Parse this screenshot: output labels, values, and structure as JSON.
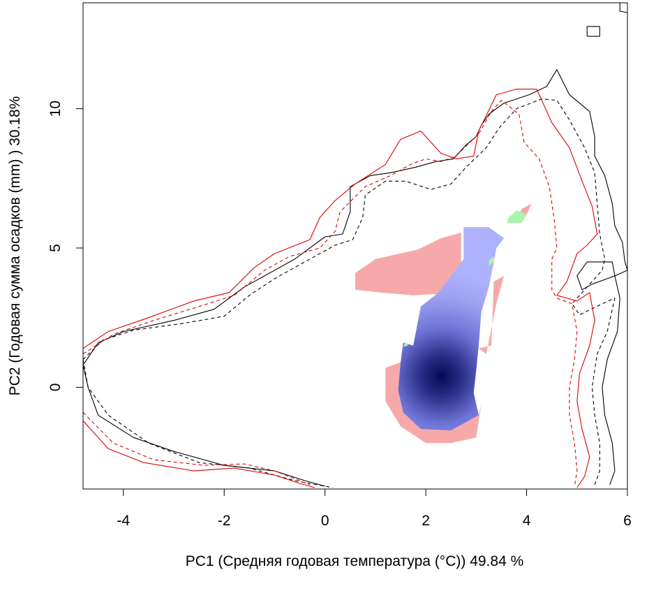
{
  "chart_data": {
    "type": "heatmap",
    "title": "",
    "xlabel": "PC1 (Средняя годовая температура (°C)) 49.84 %",
    "ylabel": "PC2 (Годовая сумма осадков  (mm) ) 30.18%",
    "xlim": [
      -4.8,
      6.0
    ],
    "ylim": [
      -3.65,
      13.8
    ],
    "x_ticks": [
      -4,
      -2,
      0,
      2,
      4,
      6
    ],
    "y_ticks": [
      0,
      5,
      10
    ],
    "x_tick_labels": [
      "-4",
      "-2",
      "0",
      "2",
      "4",
      "6"
    ],
    "y_tick_labels": [
      "0",
      "5",
      "10"
    ],
    "grid": false,
    "legend": "none",
    "colors": {
      "density_low": "#aeb1fb",
      "density_high": "#050a5a",
      "niche_only_a": "#f7a9a9",
      "niche_only_b": "#aaf5aa",
      "contour_a": "#000000",
      "contour_b": "#dd0000"
    },
    "density_peak": [
      2.3,
      0.4
    ],
    "regions": {
      "density": [
        [
          1.55,
          1.6
        ],
        [
          1.75,
          1.5
        ],
        [
          1.9,
          2.9
        ],
        [
          2.25,
          3.4
        ],
        [
          2.75,
          4.6
        ],
        [
          2.75,
          5.75
        ],
        [
          3.25,
          5.75
        ],
        [
          3.55,
          5.35
        ],
        [
          3.4,
          5.0
        ],
        [
          3.35,
          4.5
        ],
        [
          3.25,
          3.6
        ],
        [
          3.1,
          2.7
        ],
        [
          3.05,
          1.5
        ],
        [
          3.0,
          0.6
        ],
        [
          2.95,
          -0.2
        ],
        [
          3.05,
          -1.0
        ],
        [
          2.5,
          -1.55
        ],
        [
          1.9,
          -1.5
        ],
        [
          1.55,
          -0.9
        ],
        [
          1.45,
          -0.1
        ],
        [
          1.5,
          0.9
        ]
      ],
      "niche_a_only": [
        [
          [
            0.6,
            4.1
          ],
          [
            1.0,
            4.6
          ],
          [
            1.85,
            4.95
          ],
          [
            2.3,
            5.35
          ],
          [
            2.7,
            5.55
          ],
          [
            2.7,
            4.3
          ],
          [
            2.25,
            3.35
          ],
          [
            1.75,
            3.3
          ],
          [
            1.1,
            3.4
          ],
          [
            0.6,
            3.5
          ]
        ],
        [
          [
            1.2,
            0.7
          ],
          [
            1.5,
            0.9
          ],
          [
            1.45,
            -0.1
          ],
          [
            1.55,
            -0.9
          ],
          [
            1.9,
            -1.5
          ],
          [
            2.5,
            -1.55
          ],
          [
            3.05,
            -1.0
          ],
          [
            3.1,
            -0.6
          ],
          [
            3.0,
            -1.8
          ],
          [
            2.5,
            -2.0
          ],
          [
            2.0,
            -2.0
          ],
          [
            1.5,
            -1.4
          ],
          [
            1.2,
            -0.5
          ]
        ],
        [
          [
            3.05,
            1.4
          ],
          [
            3.3,
            1.5
          ],
          [
            3.35,
            3.8
          ],
          [
            3.55,
            4.0
          ],
          [
            3.4,
            3.0
          ],
          [
            3.2,
            1.2
          ]
        ],
        [
          [
            3.8,
            6.0
          ],
          [
            3.9,
            6.4
          ],
          [
            4.1,
            6.6
          ],
          [
            4.0,
            6.2
          ]
        ]
      ],
      "niche_b_only": [
        [
          [
            3.6,
            5.9
          ],
          [
            3.9,
            5.9
          ],
          [
            4.0,
            6.2
          ],
          [
            3.8,
            6.35
          ],
          [
            3.65,
            6.1
          ]
        ],
        [
          [
            3.25,
            4.35
          ],
          [
            3.35,
            4.5
          ],
          [
            3.35,
            4.7
          ],
          [
            3.25,
            4.55
          ]
        ],
        [
          [
            1.55,
            1.45
          ],
          [
            1.65,
            1.5
          ],
          [
            1.6,
            1.65
          ]
        ]
      ]
    },
    "contours": [
      {
        "color": "contour_a",
        "dash": "solid",
        "points": [
          [
            -4.8,
            0.8
          ],
          [
            -4.5,
            1.6
          ],
          [
            -4.0,
            2.0
          ],
          [
            -3.0,
            2.4
          ],
          [
            -2.2,
            2.8
          ],
          [
            -1.6,
            3.6
          ],
          [
            -1.2,
            4.0
          ],
          [
            -0.6,
            4.6
          ],
          [
            0.0,
            5.4
          ],
          [
            0.35,
            5.5
          ],
          [
            0.5,
            6.3
          ],
          [
            0.5,
            7.2
          ],
          [
            0.9,
            7.6
          ],
          [
            1.3,
            7.7
          ],
          [
            1.8,
            7.9
          ],
          [
            2.2,
            8.1
          ],
          [
            2.55,
            8.2
          ],
          [
            2.8,
            8.7
          ],
          [
            3.0,
            9.0
          ],
          [
            3.1,
            9.4
          ],
          [
            3.25,
            9.8
          ],
          [
            3.55,
            10.2
          ],
          [
            4.05,
            10.5
          ],
          [
            4.4,
            10.8
          ],
          [
            4.6,
            11.4
          ],
          [
            4.85,
            10.5
          ],
          [
            5.25,
            9.9
          ],
          [
            5.35,
            9.0
          ],
          [
            5.35,
            8.3
          ],
          [
            5.55,
            7.6
          ],
          [
            5.7,
            6.6
          ],
          [
            5.75,
            5.8
          ],
          [
            5.9,
            5.2
          ],
          [
            5.95,
            4.5
          ],
          [
            6.0,
            4.2
          ],
          [
            5.75,
            4.0
          ],
          [
            5.6,
            3.9
          ],
          [
            5.3,
            3.7
          ],
          [
            5.1,
            3.5
          ],
          [
            5.0,
            4.0
          ],
          [
            5.2,
            4.5
          ],
          [
            5.7,
            4.5
          ],
          [
            5.75,
            4.0
          ],
          [
            5.85,
            3.2
          ],
          [
            5.8,
            2.0
          ],
          [
            5.6,
            1.0
          ],
          [
            5.5,
            0.0
          ],
          [
            5.55,
            -1.0
          ],
          [
            5.7,
            -2.0
          ],
          [
            5.75,
            -3.0
          ],
          [
            5.65,
            -3.5
          ]
        ]
      },
      {
        "color": "contour_a",
        "dash": "solid",
        "points": [
          [
            -4.8,
            0.8
          ],
          [
            -4.7,
            0.0
          ],
          [
            -4.5,
            -1.0
          ],
          [
            -3.8,
            -1.8
          ],
          [
            -3.0,
            -2.3
          ],
          [
            -2.0,
            -2.8
          ],
          [
            -1.0,
            -3.0
          ],
          [
            -0.4,
            -3.35
          ],
          [
            0.0,
            -3.55
          ]
        ]
      },
      {
        "color": "contour_a",
        "dash": "dashed",
        "points": [
          [
            -4.8,
            1.0
          ],
          [
            -4.4,
            1.7
          ],
          [
            -3.8,
            2.05
          ],
          [
            -2.8,
            2.3
          ],
          [
            -2.0,
            2.55
          ],
          [
            -1.5,
            3.3
          ],
          [
            -1.0,
            3.9
          ],
          [
            -0.4,
            4.5
          ],
          [
            0.2,
            5.1
          ],
          [
            0.55,
            5.3
          ],
          [
            0.75,
            6.1
          ],
          [
            0.8,
            6.9
          ],
          [
            1.2,
            7.4
          ],
          [
            1.6,
            7.4
          ],
          [
            2.1,
            7.1
          ],
          [
            2.5,
            7.3
          ],
          [
            2.8,
            7.9
          ],
          [
            3.2,
            8.6
          ],
          [
            3.45,
            9.3
          ],
          [
            3.8,
            10.0
          ],
          [
            4.3,
            10.35
          ],
          [
            4.6,
            10.3
          ],
          [
            4.85,
            9.6
          ],
          [
            5.15,
            8.6
          ],
          [
            5.35,
            7.7
          ],
          [
            5.4,
            6.6
          ],
          [
            5.45,
            5.5
          ],
          [
            5.55,
            4.6
          ],
          [
            5.5,
            4.2
          ],
          [
            5.2,
            3.6
          ],
          [
            4.9,
            3.0
          ],
          [
            5.05,
            2.6
          ],
          [
            5.5,
            3.0
          ],
          [
            5.75,
            3.2
          ],
          [
            5.6,
            2.0
          ],
          [
            5.4,
            1.2
          ],
          [
            5.3,
            0.0
          ],
          [
            5.35,
            -1.0
          ],
          [
            5.45,
            -2.0
          ],
          [
            5.45,
            -3.0
          ],
          [
            5.35,
            -3.5
          ]
        ]
      },
      {
        "color": "contour_a",
        "dash": "dashed",
        "points": [
          [
            -4.8,
            1.0
          ],
          [
            -4.7,
            0.0
          ],
          [
            -4.3,
            -1.0
          ],
          [
            -3.5,
            -2.0
          ],
          [
            -2.5,
            -2.7
          ],
          [
            -1.5,
            -2.9
          ],
          [
            -0.6,
            -3.35
          ],
          [
            0.15,
            -3.6
          ]
        ]
      },
      {
        "color": "contour_b",
        "dash": "solid",
        "points": [
          [
            -4.8,
            1.4
          ],
          [
            -4.3,
            2.0
          ],
          [
            -3.5,
            2.5
          ],
          [
            -2.6,
            3.1
          ],
          [
            -1.9,
            3.4
          ],
          [
            -1.4,
            4.3
          ],
          [
            -1.0,
            4.8
          ],
          [
            -0.3,
            5.3
          ],
          [
            -0.1,
            6.1
          ],
          [
            0.2,
            6.7
          ],
          [
            0.6,
            7.3
          ],
          [
            1.2,
            8.0
          ],
          [
            1.5,
            8.9
          ],
          [
            1.9,
            9.2
          ],
          [
            2.3,
            8.4
          ],
          [
            2.6,
            8.2
          ],
          [
            2.95,
            8.3
          ],
          [
            3.05,
            9.2
          ],
          [
            3.4,
            10.5
          ],
          [
            3.8,
            10.7
          ],
          [
            4.2,
            10.7
          ],
          [
            4.5,
            9.5
          ],
          [
            4.85,
            8.6
          ],
          [
            5.1,
            7.4
          ],
          [
            5.3,
            6.5
          ],
          [
            5.4,
            5.5
          ],
          [
            5.2,
            5.1
          ],
          [
            5.0,
            4.8
          ],
          [
            4.8,
            3.8
          ],
          [
            4.6,
            3.3
          ],
          [
            5.0,
            3.1
          ],
          [
            5.25,
            3.4
          ],
          [
            5.35,
            2.4
          ],
          [
            5.25,
            1.5
          ],
          [
            5.05,
            0.5
          ],
          [
            5.0,
            -0.5
          ],
          [
            5.1,
            -1.5
          ],
          [
            5.25,
            -2.5
          ],
          [
            5.15,
            -3.2
          ],
          [
            5.0,
            -3.6
          ]
        ]
      },
      {
        "color": "contour_b",
        "dash": "solid",
        "points": [
          [
            -4.8,
            -1.2
          ],
          [
            -4.3,
            -2.2
          ],
          [
            -3.6,
            -2.7
          ],
          [
            -2.6,
            -3.0
          ],
          [
            -1.8,
            -2.9
          ],
          [
            -1.0,
            -3.15
          ],
          [
            -0.5,
            -3.45
          ],
          [
            -0.2,
            -3.6
          ]
        ]
      },
      {
        "color": "contour_b",
        "dash": "dashed",
        "points": [
          [
            -4.8,
            1.2
          ],
          [
            -4.2,
            1.9
          ],
          [
            -3.4,
            2.4
          ],
          [
            -2.5,
            2.9
          ],
          [
            -1.8,
            3.3
          ],
          [
            -1.2,
            4.2
          ],
          [
            -0.7,
            4.7
          ],
          [
            -0.1,
            5.0
          ],
          [
            0.2,
            5.6
          ],
          [
            0.3,
            6.3
          ],
          [
            0.8,
            7.2
          ],
          [
            1.3,
            7.6
          ],
          [
            1.7,
            8.0
          ],
          [
            2.0,
            8.2
          ],
          [
            2.3,
            8.1
          ],
          [
            2.6,
            8.3
          ],
          [
            3.05,
            9.1
          ],
          [
            3.3,
            9.9
          ],
          [
            3.5,
            10.3
          ],
          [
            3.85,
            9.8
          ],
          [
            3.95,
            8.8
          ],
          [
            4.25,
            8.2
          ],
          [
            4.45,
            7.2
          ],
          [
            4.55,
            6.0
          ],
          [
            4.6,
            5.0
          ],
          [
            4.5,
            4.6
          ],
          [
            4.5,
            3.5
          ],
          [
            4.6,
            3.2
          ],
          [
            4.9,
            3.0
          ],
          [
            5.0,
            2.0
          ],
          [
            4.95,
            1.0
          ],
          [
            4.85,
            0.0
          ],
          [
            4.85,
            -1.0
          ],
          [
            4.95,
            -2.0
          ],
          [
            5.0,
            -3.0
          ],
          [
            4.95,
            -3.55
          ]
        ]
      },
      {
        "color": "contour_b",
        "dash": "dashed",
        "points": [
          [
            -4.8,
            -0.9
          ],
          [
            -4.2,
            -2.0
          ],
          [
            -3.4,
            -2.6
          ],
          [
            -2.4,
            -2.8
          ],
          [
            -1.6,
            -2.75
          ],
          [
            -1.0,
            -3.0
          ],
          [
            -0.5,
            -3.35
          ],
          [
            -0.3,
            -3.5
          ]
        ]
      },
      {
        "color": "contour_a",
        "dash": "solid",
        "points": [
          [
            5.2,
            12.6
          ],
          [
            5.45,
            12.6
          ],
          [
            5.45,
            12.95
          ],
          [
            5.2,
            12.95
          ],
          [
            5.2,
            12.6
          ]
        ]
      },
      {
        "color": "contour_a",
        "dash": "solid",
        "points": [
          [
            5.85,
            13.8
          ],
          [
            5.85,
            13.5
          ],
          [
            6.0,
            13.45
          ]
        ]
      }
    ]
  }
}
